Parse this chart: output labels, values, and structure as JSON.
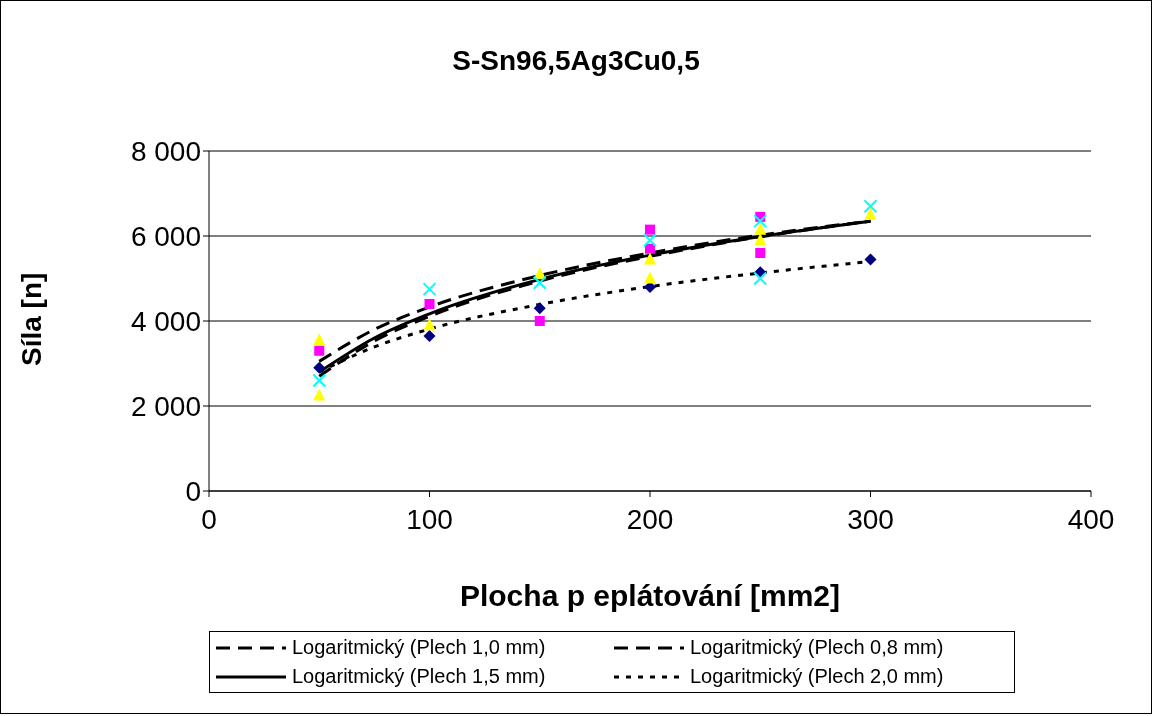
{
  "chart_data": {
    "type": "scatter",
    "title": "S-Sn96,5Ag3Cu0,5",
    "xlabel": "Plocha p eplátování [mm2]",
    "ylabel": "Síla [n]",
    "xlim": [
      0,
      400
    ],
    "xticks": [
      0,
      100,
      200,
      300,
      400
    ],
    "ylim": [
      0,
      8000
    ],
    "yticks": [
      {
        "value": 0,
        "label": "0"
      },
      {
        "value": 2000,
        "label": "2 000"
      },
      {
        "value": 4000,
        "label": "4 000"
      },
      {
        "value": 6000,
        "label": "6 000"
      },
      {
        "value": 8000,
        "label": "8 000"
      }
    ],
    "grid": "y",
    "legend": "bottom",
    "series": [
      {
        "marker": "diamond",
        "color": "#000080",
        "x": [
          50,
          100,
          150,
          200,
          250,
          300
        ],
        "values": [
          2900,
          3650,
          4300,
          4800,
          5150,
          5450
        ]
      },
      {
        "marker": "square",
        "color": "#ff00ff",
        "x": [
          50,
          100,
          150,
          200,
          200,
          250,
          250
        ],
        "values": [
          3300,
          4400,
          4000,
          6150,
          5700,
          6450,
          5600
        ]
      },
      {
        "marker": "triangle",
        "color": "#ffff00",
        "x": [
          50,
          50,
          100,
          150,
          200,
          200,
          250,
          250,
          300
        ],
        "values": [
          3550,
          2250,
          3900,
          5100,
          5450,
          5000,
          5900,
          6150,
          6500
        ]
      },
      {
        "marker": "cross",
        "color": "#00ffff",
        "x": [
          50,
          100,
          150,
          200,
          250,
          250,
          300
        ],
        "values": [
          2600,
          4750,
          4900,
          5900,
          6350,
          5000,
          6700
        ]
      },
      {
        "type": "line",
        "name": "Logaritmický (Plech 1,0 mm)",
        "line_style": "dashed",
        "color": "#000000",
        "x": [
          50,
          75,
          100,
          150,
          200,
          250,
          300
        ],
        "values": [
          3050,
          3800,
          4330,
          5070,
          5600,
          6020,
          6350
        ]
      },
      {
        "type": "line",
        "name": "Logaritmický (Plech 0,8 mm)",
        "line_style": "dashed",
        "color": "#000000",
        "x": [
          50,
          75,
          100,
          150,
          200,
          250,
          300
        ],
        "values": [
          2700,
          3530,
          4110,
          4940,
          5520,
          5980,
          6350
        ]
      },
      {
        "type": "line",
        "name": "Logaritmický (Plech 1,5 mm)",
        "line_style": "solid",
        "color": "#000000",
        "x": [
          50,
          75,
          100,
          150,
          200,
          250,
          300
        ],
        "values": [
          2800,
          3600,
          4170,
          4980,
          5550,
          5990,
          6350
        ]
      },
      {
        "type": "line",
        "name": "Logaritmický (Plech 2,0 mm)",
        "line_style": "dotted",
        "color": "#000000",
        "x": [
          50,
          75,
          100,
          150,
          200,
          250,
          300
        ],
        "values": [
          2800,
          3390,
          3810,
          4390,
          4810,
          5130,
          5400
        ]
      }
    ]
  }
}
